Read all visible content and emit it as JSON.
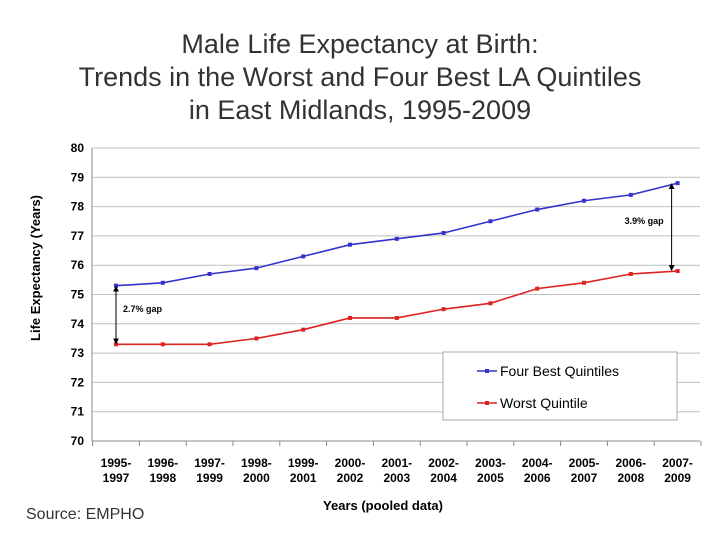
{
  "title_lines": [
    "Male Life Expectancy at Birth:",
    "Trends in the Worst and Four Best LA Quintiles",
    "in East Midlands, 1995-2009"
  ],
  "source": "Source: EMPHO",
  "colors": {
    "best": "#3333cc",
    "worst": "#dd2222",
    "grid": "#bfbfbf",
    "axis": "#888888"
  },
  "chart_data": {
    "type": "line",
    "title": "Male Life Expectancy at Birth: Trends in the Worst and Four Best LA Quintiles in East Midlands, 1995-2009",
    "xlabel": "Years (pooled data)",
    "ylabel": "Life Expectancy (Years)",
    "ylim": [
      70,
      80
    ],
    "yticks": [
      70,
      71,
      72,
      73,
      74,
      75,
      76,
      77,
      78,
      79,
      80
    ],
    "grid": true,
    "legend_position": "bottom-right",
    "categories": [
      [
        "1995-",
        "1997"
      ],
      [
        "1996-",
        "1998"
      ],
      [
        "1997-",
        "1999"
      ],
      [
        "1998-",
        "2000"
      ],
      [
        "1999-",
        "2001"
      ],
      [
        "2000-",
        "2002"
      ],
      [
        "2001-",
        "2003"
      ],
      [
        "2002-",
        "2004"
      ],
      [
        "2003-",
        "2005"
      ],
      [
        "2004-",
        "2006"
      ],
      [
        "2005-",
        "2007"
      ],
      [
        "2006-",
        "2008"
      ],
      [
        "2007-",
        "2009"
      ]
    ],
    "series": [
      {
        "name": "Four Best Quintiles",
        "color": "#3333cc",
        "values": [
          75.3,
          75.4,
          75.7,
          75.9,
          76.3,
          76.7,
          76.9,
          77.1,
          77.5,
          77.9,
          78.2,
          78.4,
          78.8
        ]
      },
      {
        "name": "Worst Quintile",
        "color": "#dd2222",
        "values": [
          73.3,
          73.3,
          73.3,
          73.5,
          73.8,
          74.2,
          74.2,
          74.5,
          74.7,
          75.2,
          75.4,
          75.7,
          75.8
        ]
      }
    ],
    "annotations": [
      {
        "text": "2.7% gap",
        "category_index": 0
      },
      {
        "text": "3.9% gap",
        "category_index": 12
      }
    ]
  }
}
